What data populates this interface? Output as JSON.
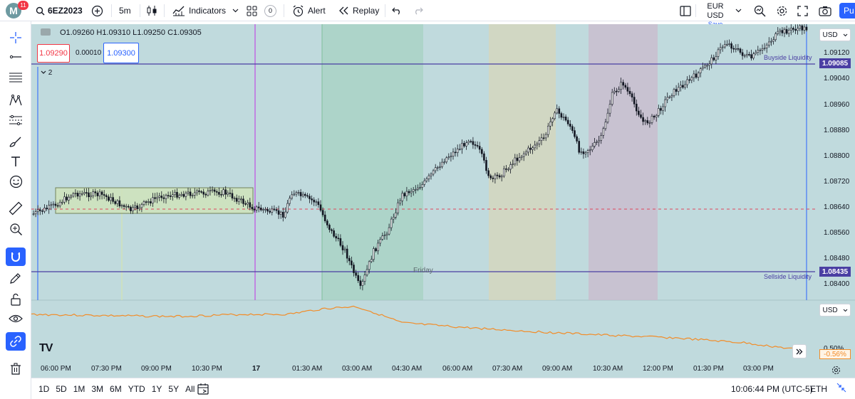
{
  "header": {
    "logo_letter": "M",
    "notification_count": "11",
    "symbol": "6EZ2023",
    "interval": "5m",
    "indicators_label": "Indicators",
    "layouts_badge": "0",
    "alert_label": "Alert",
    "replay_label": "Replay",
    "currency": "EUR USD",
    "save_label": "Save",
    "publish_label": "Pu"
  },
  "legend": {
    "ohlc": "O1.09260 H1.09310 L1.09250 C1.09305",
    "bid": "1.09290",
    "spread": "0.00010",
    "ask": "1.09300",
    "collapse_count": "2"
  },
  "price_axis": {
    "currency": "USD",
    "ticks": [
      "1.09120",
      "1.09040",
      "1.08960",
      "1.08880",
      "1.08800",
      "1.08720",
      "1.08640",
      "1.08560",
      "1.08480",
      "1.08400"
    ],
    "buyside_price": "1.09085",
    "sellside_price": "1.08435"
  },
  "annotations": {
    "buyside": "Buyside Liquidity",
    "sellside": "Sellside Liquidity",
    "friday": "Friday"
  },
  "indicator_pane": {
    "currency": "USD",
    "value1": "0.50%",
    "value2": "-0.56%"
  },
  "time_axis": [
    "06:00 PM",
    "07:30 PM",
    "09:00 PM",
    "10:30 PM",
    "17",
    "01:30 AM",
    "03:00 AM",
    "04:30 AM",
    "06:00 AM",
    "07:30 AM",
    "09:00 AM",
    "10:30 AM",
    "12:00 PM",
    "01:30 PM",
    "03:00 PM"
  ],
  "footer": {
    "ranges": [
      "1D",
      "5D",
      "1M",
      "3M",
      "6M",
      "YTD",
      "1Y",
      "5Y",
      "All"
    ],
    "clock": "10:06:44 PM (UTC-5)",
    "session": "ETH"
  },
  "colors": {
    "chart_bg": "#c0dadd",
    "candle": "#131722",
    "liquidity_line": "#4a3fa3",
    "accent": "#2962ff",
    "indicator_line": "#f28c28"
  }
}
